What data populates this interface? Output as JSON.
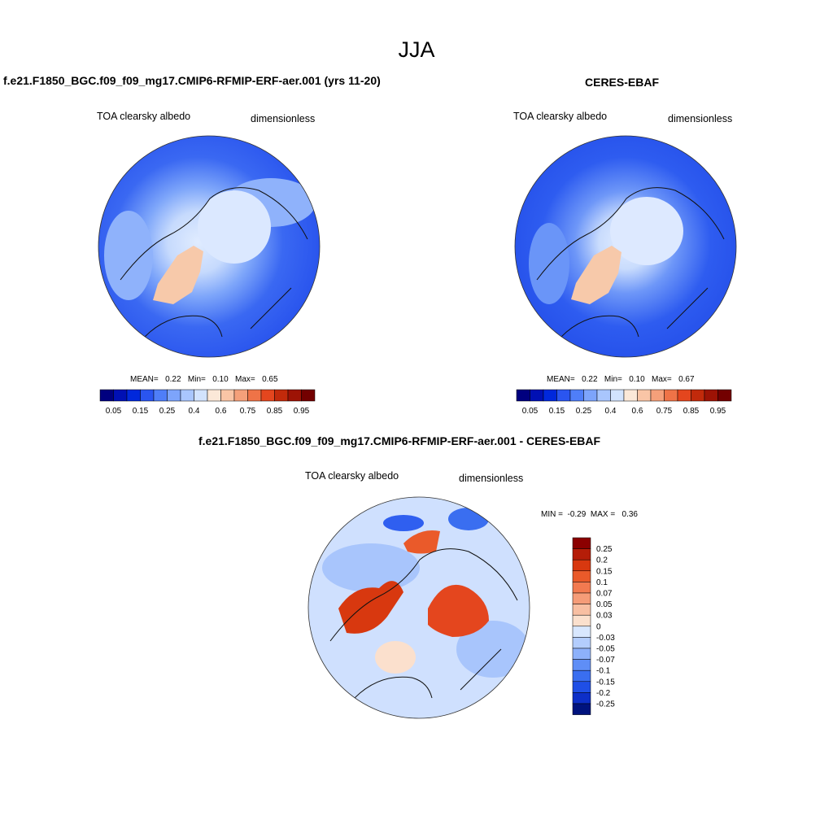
{
  "figure": {
    "title": "JJA"
  },
  "panels": [
    {
      "title": "f.e21.F1850_BGC.f09_f09_mg17.CMIP6-RFMIP-ERF-aer.001 (yrs 11-20)",
      "variable": "TOA clearsky albedo",
      "units": "dimensionless",
      "stats": {
        "mean_label": "MEAN=",
        "mean": "0.22",
        "min_label": "Min=",
        "min": "0.10",
        "max_label": "Max=",
        "max": "0.65"
      }
    },
    {
      "title": "CERES-EBAF",
      "variable": "TOA clearsky albedo",
      "units": "dimensionless",
      "stats": {
        "mean_label": "MEAN=",
        "mean": "0.22",
        "min_label": "Min=",
        "min": "0.10",
        "max_label": "Max=",
        "max": "0.67"
      }
    },
    {
      "title": "f.e21.F1850_BGC.f09_f09_mg17.CMIP6-RFMIP-ERF-aer.001 - CERES-EBAF",
      "variable": "TOA clearsky albedo",
      "units": "dimensionless",
      "stats": {
        "min_label": "MIN =",
        "min": "-0.29",
        "max_label": "MAX =",
        "max": "0.36"
      }
    }
  ],
  "colorbars": {
    "absolute": {
      "colors": [
        "#00007f",
        "#0010b4",
        "#0028dc",
        "#2a55f0",
        "#4f7ef8",
        "#7da4fb",
        "#a9c6fd",
        "#d2e3fe",
        "#fbe8d8",
        "#f9c5a6",
        "#f5a07a",
        "#ef7347",
        "#e4461e",
        "#c22a0b",
        "#9d1305",
        "#730000"
      ],
      "labels": [
        "0.05",
        "0.15",
        "0.25",
        "0.4",
        "0.6",
        "0.75",
        "0.85",
        "0.95"
      ]
    },
    "difference": {
      "colors": [
        "#8b0000",
        "#b51d08",
        "#d8380f",
        "#ea5a2a",
        "#f27a50",
        "#f59c78",
        "#f8bfa2",
        "#fbe0cd",
        "#d8e7fe",
        "#b3cdfd",
        "#8db1fb",
        "#5f8ef6",
        "#3a6ef0",
        "#1f4fe6",
        "#0d2fc8",
        "#00137e"
      ],
      "labels": [
        "0.25",
        "0.2",
        "0.15",
        "0.1",
        "0.07",
        "0.05",
        "0.03",
        "0",
        "-0.03",
        "-0.05",
        "-0.07",
        "-0.1",
        "-0.15",
        "-0.2",
        "-0.25"
      ]
    }
  }
}
